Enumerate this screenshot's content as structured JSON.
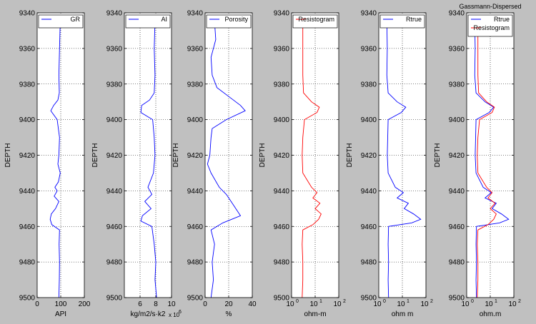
{
  "chart_data": [
    {
      "type": "line",
      "panel": "gr",
      "xlabel": "API",
      "ylabel": "DEPTH",
      "xscale": "linear",
      "xlim": [
        0,
        200
      ],
      "ylim": [
        9340,
        9500
      ],
      "y_inverted": true,
      "xticks": [
        "0",
        "100",
        "200"
      ],
      "yticks": [
        "9340",
        "9360",
        "9380",
        "9400",
        "9420",
        "9440",
        "9460",
        "9480",
        "9500"
      ],
      "grid": "dotted",
      "legend": "top-right",
      "series": [
        {
          "name": "GR",
          "color": "#0000ff",
          "depth": [
            9345,
            9360,
            9375,
            9385,
            9389,
            9392,
            9395,
            9400,
            9410,
            9420,
            9425,
            9430,
            9435,
            9438,
            9440,
            9443,
            9446,
            9450,
            9453,
            9456,
            9459,
            9462,
            9470,
            9480,
            9490,
            9500
          ],
          "values": [
            98,
            95,
            92,
            94,
            88,
            70,
            58,
            85,
            95,
            92,
            88,
            98,
            90,
            75,
            85,
            72,
            92,
            78,
            60,
            55,
            62,
            95,
            93,
            95,
            94,
            92
          ]
        }
      ]
    },
    {
      "type": "line",
      "panel": "ai",
      "title": "",
      "xlabel": "kg/m2/s·k2",
      "xlabel_exp": "x 10",
      "xlabel_exp_power": "6",
      "ylabel": "DEPTH",
      "xscale": "linear",
      "xlim": [
        4,
        10
      ],
      "ylim": [
        9340,
        9500
      ],
      "y_inverted": true,
      "xticks": [
        "6",
        "8",
        "10"
      ],
      "yticks": [
        "9340",
        "9360",
        "9380",
        "9400",
        "9420",
        "9440",
        "9460",
        "9480",
        "9500"
      ],
      "grid": "dotted",
      "legend": "top-right",
      "series": [
        {
          "name": "AI",
          "color": "#0000ff",
          "depth": [
            9345,
            9360,
            9375,
            9385,
            9389,
            9392,
            9396,
            9400,
            9410,
            9420,
            9430,
            9438,
            9442,
            9446,
            9450,
            9454,
            9457,
            9460,
            9470,
            9480,
            9490,
            9500
          ],
          "values": [
            7.9,
            7.8,
            7.9,
            7.8,
            7.2,
            6.2,
            6.1,
            7.6,
            7.8,
            7.9,
            7.7,
            7.0,
            7.5,
            6.6,
            7.4,
            6.3,
            6.1,
            7.5,
            7.8,
            8.0,
            7.9,
            8.1
          ]
        }
      ]
    },
    {
      "type": "line",
      "panel": "porosity",
      "xlabel": "%",
      "ylabel": "DEPTH",
      "xscale": "linear",
      "xlim": [
        0,
        40
      ],
      "ylim": [
        9340,
        9500
      ],
      "y_inverted": true,
      "xticks": [
        "0",
        "20",
        "40"
      ],
      "yticks": [
        "9340",
        "9360",
        "9380",
        "9400",
        "9420",
        "9440",
        "9460",
        "9480",
        "9500"
      ],
      "grid": "dotted",
      "legend": "top-right",
      "series": [
        {
          "name": "Porosity",
          "color": "#0000ff",
          "depth": [
            9345,
            9355,
            9365,
            9375,
            9382,
            9388,
            9392,
            9395,
            9400,
            9405,
            9410,
            9420,
            9425,
            9430,
            9438,
            9442,
            9446,
            9450,
            9454,
            9458,
            9462,
            9470,
            9480,
            9490,
            9500
          ],
          "values": [
            8,
            9,
            5,
            6,
            10,
            22,
            30,
            34,
            18,
            6,
            5,
            4,
            2,
            5,
            12,
            18,
            22,
            26,
            30,
            15,
            5,
            8,
            6,
            7,
            5
          ]
        }
      ]
    },
    {
      "type": "line",
      "panel": "resistogram",
      "xlabel": "ohm-m",
      "ylabel": "DEPTH",
      "xscale": "log",
      "xlim": [
        1,
        100
      ],
      "ylim": [
        9340,
        9500
      ],
      "y_inverted": true,
      "xticks": [
        "10",
        "0",
        "10",
        "1",
        "10",
        "2"
      ],
      "yticks": [
        "9340",
        "9360",
        "9380",
        "9400",
        "9420",
        "9440",
        "9460",
        "9480",
        "9500"
      ],
      "grid": "dotted",
      "legend": "top-right",
      "series": [
        {
          "name": "Resistogram",
          "color": "#ff0000",
          "depth": [
            9345,
            9360,
            9375,
            9385,
            9390,
            9393,
            9396,
            9400,
            9410,
            9420,
            9430,
            9438,
            9441,
            9444,
            9447,
            9450,
            9453,
            9456,
            9459,
            9462,
            9470,
            9480,
            9490,
            9500
          ],
          "values": [
            3,
            3,
            3,
            3.2,
            7,
            15,
            12,
            3.5,
            3,
            2.8,
            3,
            7,
            12,
            8,
            16,
            10,
            18,
            14,
            8,
            3,
            2.8,
            3,
            3,
            2.8
          ]
        }
      ]
    },
    {
      "type": "line",
      "panel": "rtrue",
      "xlabel": "ohm m",
      "ylabel": "DEPTH",
      "xscale": "log",
      "xlim": [
        1,
        100
      ],
      "ylim": [
        9340,
        9500
      ],
      "y_inverted": true,
      "xticks": [
        "10",
        "0",
        "10",
        "1",
        "10",
        "2"
      ],
      "yticks": [
        "9340",
        "9360",
        "9380",
        "9400",
        "9420",
        "9440",
        "9460",
        "9480",
        "9500"
      ],
      "grid": "dotted",
      "legend": "top-right",
      "series": [
        {
          "name": "Rtrue",
          "color": "#0000ff",
          "depth": [
            9345,
            9360,
            9375,
            9385,
            9390,
            9393,
            9396,
            9400,
            9410,
            9420,
            9430,
            9438,
            9441,
            9444,
            9447,
            9450,
            9453,
            9456,
            9458,
            9460,
            9470,
            9480,
            9490,
            9500
          ],
          "values": [
            2.2,
            2.3,
            2.2,
            2.5,
            6,
            14,
            9,
            2.5,
            2.4,
            2.3,
            2.5,
            5,
            11,
            6,
            18,
            12,
            30,
            60,
            25,
            2.6,
            2.5,
            2.6,
            2.5,
            2.6
          ]
        }
      ]
    },
    {
      "type": "line",
      "panel": "gassmann",
      "title": "Gassmann-Dispersed",
      "xlabel": "ohm.m",
      "ylabel": "DEPTH",
      "xscale": "log",
      "xlim": [
        1,
        100
      ],
      "ylim": [
        9340,
        9500
      ],
      "y_inverted": true,
      "xticks": [
        "10",
        "0",
        "10",
        "1",
        "10",
        "2"
      ],
      "yticks": [
        "9340",
        "9360",
        "9380",
        "9400",
        "9420",
        "9440",
        "9460",
        "9480",
        "9500"
      ],
      "grid": "dotted",
      "legend": "top-right",
      "series": [
        {
          "name": "Rtrue",
          "color": "#0000ff",
          "depth": [
            9345,
            9360,
            9375,
            9385,
            9390,
            9393,
            9396,
            9400,
            9410,
            9420,
            9430,
            9438,
            9441,
            9444,
            9447,
            9450,
            9453,
            9456,
            9458,
            9460,
            9470,
            9480,
            9490,
            9500
          ],
          "values": [
            2.2,
            2.3,
            2.2,
            2.5,
            6,
            14,
            9,
            2.5,
            2.4,
            2.3,
            2.5,
            5,
            11,
            6,
            18,
            12,
            30,
            60,
            25,
            2.6,
            2.5,
            2.6,
            2.5,
            2.6
          ]
        },
        {
          "name": "Resistogram",
          "color": "#ff0000",
          "depth": [
            9345,
            9360,
            9375,
            9385,
            9390,
            9393,
            9396,
            9400,
            9410,
            9420,
            9430,
            9438,
            9441,
            9444,
            9447,
            9450,
            9453,
            9456,
            9459,
            9462,
            9470,
            9480,
            9490,
            9500
          ],
          "values": [
            3,
            3,
            3,
            3.2,
            7,
            15,
            12,
            3.5,
            3,
            2.8,
            3,
            7,
            12,
            8,
            16,
            10,
            18,
            14,
            8,
            3,
            2.8,
            3,
            3,
            2.8
          ]
        }
      ]
    }
  ]
}
